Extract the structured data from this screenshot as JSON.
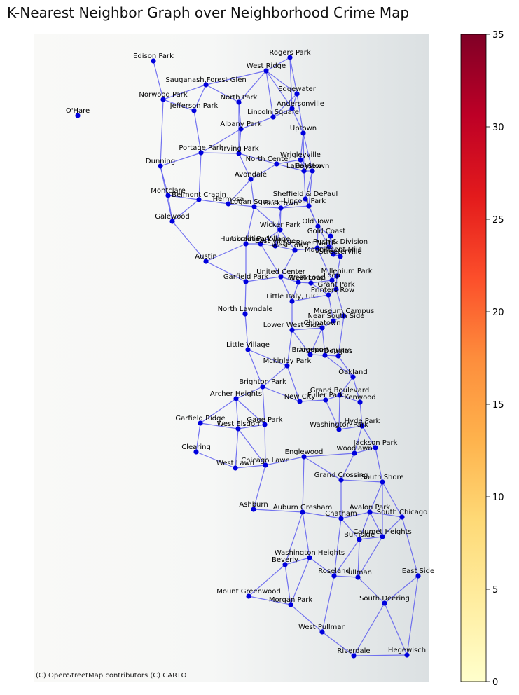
{
  "title": "K-Nearest Neighbor Graph over Neighborhood Crime Map",
  "attribution": "(C) OpenStreetMap contributors (C) CARTO",
  "colors": {
    "node": "#0000dd",
    "edge": "#5a5aee",
    "basemap_light": "#f9f9f7",
    "basemap_dark": "#dbe0e2"
  },
  "colorbar": {
    "min": 0,
    "max": 35,
    "ticks": [
      "0",
      "5",
      "10",
      "15",
      "20",
      "25",
      "30",
      "35"
    ],
    "colormap": "YlOrRd"
  },
  "neighborhoods": [
    {
      "name": "Edison Park"
    },
    {
      "name": "O'Hare"
    },
    {
      "name": "Rogers Park"
    },
    {
      "name": "West Ridge"
    },
    {
      "name": "Sauganash,Forest Glen"
    },
    {
      "name": "Norwood Park"
    },
    {
      "name": "Jefferson Park"
    },
    {
      "name": "North Park"
    },
    {
      "name": "Edgewater"
    },
    {
      "name": "Andersonville"
    },
    {
      "name": "Lincoln Square"
    },
    {
      "name": "Albany Park"
    },
    {
      "name": "Uptown"
    },
    {
      "name": "Portage Park"
    },
    {
      "name": "Irving Park"
    },
    {
      "name": "Dunning"
    },
    {
      "name": "North Center"
    },
    {
      "name": "Wrigleyville"
    },
    {
      "name": "Boystown"
    },
    {
      "name": "Lake View"
    },
    {
      "name": "Avondale"
    },
    {
      "name": "Montclare"
    },
    {
      "name": "Belmont Cragin"
    },
    {
      "name": "Hermosa"
    },
    {
      "name": "Logan Square"
    },
    {
      "name": "Sheffield & DePaul"
    },
    {
      "name": "Lincoln Park"
    },
    {
      "name": "Bucktown"
    },
    {
      "name": "Galewood"
    },
    {
      "name": "Old Town"
    },
    {
      "name": "Wicker Park"
    },
    {
      "name": "Gold Coast"
    },
    {
      "name": "Humboldt Park"
    },
    {
      "name": "Ukrainian Village"
    },
    {
      "name": "East Village"
    },
    {
      "name": "Rush & Division"
    },
    {
      "name": "River North"
    },
    {
      "name": "West Town"
    },
    {
      "name": "Magnificent Mile"
    },
    {
      "name": "Streeterville"
    },
    {
      "name": "Austin"
    },
    {
      "name": "United Center"
    },
    {
      "name": "Millenium Park"
    },
    {
      "name": "Garfield Park"
    },
    {
      "name": "West Loop"
    },
    {
      "name": "Greektown"
    },
    {
      "name": "Loop"
    },
    {
      "name": "Grant Park"
    },
    {
      "name": "Printers Row"
    },
    {
      "name": "Little Italy, UIC"
    },
    {
      "name": "North Lawndale"
    },
    {
      "name": "Museum Campus"
    },
    {
      "name": "Near South Side"
    },
    {
      "name": "Chinatown"
    },
    {
      "name": "Lower West Side"
    },
    {
      "name": "Little Village"
    },
    {
      "name": "Bridgeport"
    },
    {
      "name": "Armour Square"
    },
    {
      "name": "Douglas"
    },
    {
      "name": "Mckinley Park"
    },
    {
      "name": "Oakland"
    },
    {
      "name": "Brighton Park"
    },
    {
      "name": "Archer Heights"
    },
    {
      "name": "Grand Boulevard"
    },
    {
      "name": "New City"
    },
    {
      "name": "Fuller Park"
    },
    {
      "name": "Kenwood"
    },
    {
      "name": "Garfield Ridge"
    },
    {
      "name": "West Elsdon"
    },
    {
      "name": "Gage Park"
    },
    {
      "name": "Hyde Park"
    },
    {
      "name": "Washington Park"
    },
    {
      "name": "Clearing"
    },
    {
      "name": "Jackson Park"
    },
    {
      "name": "Woodlawn"
    },
    {
      "name": "Englewood"
    },
    {
      "name": "West Lawn"
    },
    {
      "name": "Chicago Lawn"
    },
    {
      "name": "Grand Crossing"
    },
    {
      "name": "South Shore"
    },
    {
      "name": "Ashburn"
    },
    {
      "name": "Auburn Gresham"
    },
    {
      "name": "Avalon Park"
    },
    {
      "name": "Chatham"
    },
    {
      "name": "South Chicago"
    },
    {
      "name": "Calumet Heights"
    },
    {
      "name": "Burnside"
    },
    {
      "name": "Washington Heights"
    },
    {
      "name": "Beverly"
    },
    {
      "name": "Roseland"
    },
    {
      "name": "Pullman"
    },
    {
      "name": "East Side"
    },
    {
      "name": "Mount Greenwood"
    },
    {
      "name": "Morgan Park"
    },
    {
      "name": "South Deering"
    },
    {
      "name": "West Pullman"
    },
    {
      "name": "Riverdale"
    },
    {
      "name": "Hegewisch"
    }
  ]
}
